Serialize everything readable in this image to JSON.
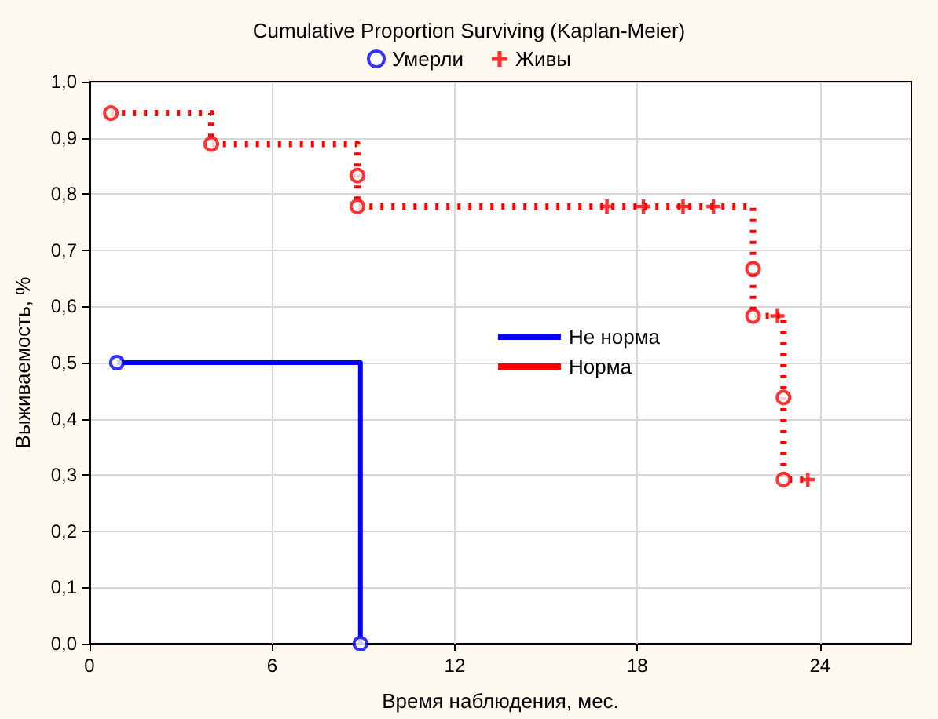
{
  "chart_data": {
    "type": "step",
    "title": "Cumulative Proportion Surviving (Kaplan-Meier)",
    "xlabel": "Время наблюдения, мес.",
    "ylabel": "Выживаемость, %",
    "xlim": [
      0,
      27
    ],
    "xticks": [
      0,
      6,
      12,
      18,
      24
    ],
    "ylim": [
      0,
      1
    ],
    "yticks": [
      {
        "value": 0,
        "label": "0,0"
      },
      {
        "value": 0.1,
        "label": "0,1"
      },
      {
        "value": 0.2,
        "label": "0,2"
      },
      {
        "value": 0.3,
        "label": "0,3"
      },
      {
        "value": 0.4,
        "label": "0,4"
      },
      {
        "value": 0.5,
        "label": "0,5"
      },
      {
        "value": 0.6,
        "label": "0,6"
      },
      {
        "value": 0.7,
        "label": "0,7"
      },
      {
        "value": 0.8,
        "label": "0,8"
      },
      {
        "value": 0.9,
        "label": "0,9"
      },
      {
        "value": 1,
        "label": "1,0"
      }
    ],
    "grid": true,
    "legend": "top",
    "marker": "none",
    "series": [
      {
        "name": "Не норма",
        "color": "#0000ff",
        "line_style": "solid",
        "x": [
          0.9,
          8.9
        ],
        "values": [
          0.5,
          0.0
        ]
      },
      {
        "name": "Норма",
        "color": "#ff0000",
        "line_style": "dotted",
        "x": [
          0.7,
          4.0,
          8.8,
          21.8,
          22.8,
          23.6
        ],
        "values": [
          0.944,
          0.889,
          0.778,
          0.583,
          0.292,
          0.292
        ]
      },
      {
        "name": "Умерли",
        "type": "scatter",
        "marker": "circle",
        "color": "#0000ff",
        "x": [
          0.9,
          8.9,
          0.7,
          4.0,
          8.8,
          8.8,
          21.8,
          21.8,
          22.8,
          22.8
        ],
        "values": [
          0.5,
          0.0,
          0.944,
          0.889,
          0.833,
          0.778,
          0.667,
          0.583,
          0.438,
          0.292
        ],
        "colors": [
          "#0000ff",
          "#0000ff",
          "#ff0000",
          "#ff0000",
          "#ff0000",
          "#ff0000",
          "#ff0000",
          "#ff0000",
          "#ff0000",
          "#ff0000"
        ]
      },
      {
        "name": "Живы",
        "type": "scatter",
        "marker": "cross",
        "color": "#ff0000",
        "x": [
          17.0,
          18.2,
          19.5,
          20.5,
          22.6,
          23.6
        ],
        "values": [
          0.778,
          0.778,
          0.778,
          0.778,
          0.583,
          0.292
        ],
        "colors": [
          "#ff0000",
          "#ff0000",
          "#ff0000",
          "#ff0000",
          "#ff0000",
          "#ff0000"
        ]
      }
    ]
  }
}
